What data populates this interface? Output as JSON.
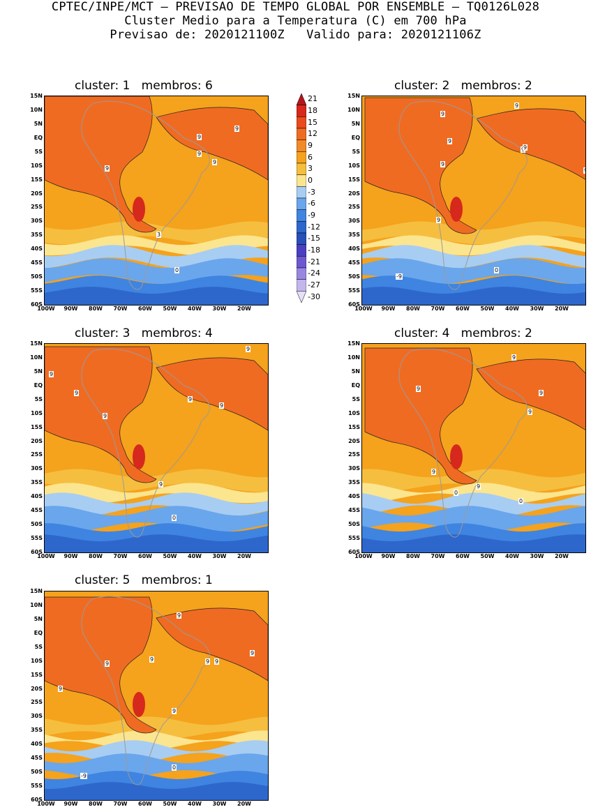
{
  "header": {
    "line1": "CPTEC/INPE/MCT – PREVISAO DE TEMPO GLOBAL POR ENSEMBLE – TQ0126L028",
    "line2": "Cluster Medio para a Temperatura (C) em 700 hPa",
    "line3": "Previsao de: 2020121100Z   Valido para: 2020121106Z"
  },
  "lat_labels": [
    "15N",
    "10N",
    "5N",
    "EQ",
    "5S",
    "10S",
    "15S",
    "20S",
    "25S",
    "30S",
    "35S",
    "40S",
    "45S",
    "50S",
    "55S",
    "60S"
  ],
  "lon_labels": [
    "100W",
    "90W",
    "80W",
    "70W",
    "60W",
    "50W",
    "40W",
    "30W",
    "20W"
  ],
  "colorbar": {
    "labels": [
      "21",
      "18",
      "15",
      "12",
      "9",
      "6",
      "3",
      "0",
      "-3",
      "-6",
      "-9",
      "-12",
      "-15",
      "-18",
      "-21",
      "-24",
      "-27",
      "-30"
    ],
    "colors": [
      "#b3161c",
      "#d6281c",
      "#ea4a1c",
      "#f06b22",
      "#f38a28",
      "#f5a21c",
      "#f6be3f",
      "#fbe58f",
      "#a8cdf2",
      "#6aa6ec",
      "#3f84e0",
      "#2e67cc",
      "#2a4fb8",
      "#4a3fc0",
      "#6e58d2",
      "#9a86e0",
      "#c3b6ec",
      "#e6e0f7"
    ]
  },
  "panels": [
    {
      "title": "cluster: 1   membros: 6",
      "labels": [
        "9",
        "9",
        "9",
        "9",
        "9",
        "3",
        "0"
      ]
    },
    {
      "title": "cluster: 2   membros: 2",
      "labels": [
        "9",
        "9",
        "9",
        "9",
        "9",
        "9",
        "9",
        "9",
        "0",
        "-9"
      ]
    },
    {
      "title": "cluster: 3   membros: 4",
      "labels": [
        "9",
        "9",
        "9",
        "9",
        "9",
        "9",
        "9",
        "0"
      ]
    },
    {
      "title": "cluster: 4   membros: 2",
      "labels": [
        "9",
        "9",
        "9",
        "9",
        "9",
        "9",
        "0",
        "0"
      ]
    },
    {
      "title": "cluster: 5   membros: 1",
      "labels": [
        "9",
        "9",
        "9",
        "9",
        "9",
        "9",
        "9",
        "9",
        "0",
        "-9"
      ]
    }
  ]
}
